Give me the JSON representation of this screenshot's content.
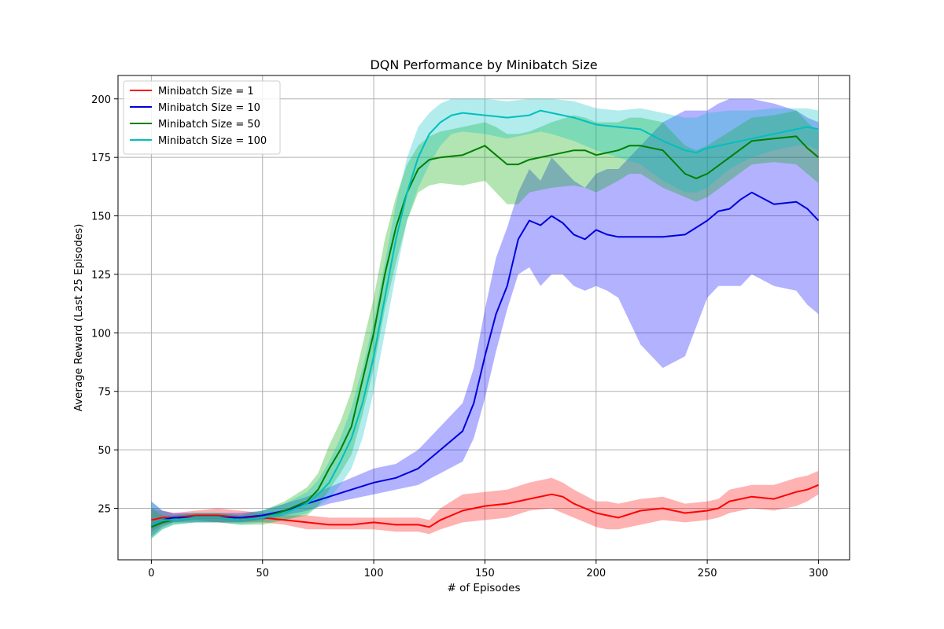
{
  "chart_data": {
    "type": "line",
    "title": "DQN Performance by Minibatch Size",
    "xlabel": "# of Episodes",
    "ylabel": "Average Reward (Last 25 Episodes)",
    "xlim": [
      -15,
      314
    ],
    "ylim": [
      3,
      210
    ],
    "xticks": [
      0,
      50,
      100,
      150,
      200,
      250,
      300
    ],
    "yticks": [
      25,
      50,
      75,
      100,
      125,
      150,
      175,
      200
    ],
    "grid": true,
    "legend_position": "upper-left",
    "band": "shaded region = mean ± spread across runs",
    "series": [
      {
        "name": "Minibatch Size = 1",
        "color": "#ff0000",
        "band_color": "#ff0000",
        "x": [
          0,
          5,
          10,
          20,
          30,
          40,
          50,
          60,
          70,
          80,
          90,
          100,
          110,
          120,
          125,
          130,
          140,
          150,
          160,
          170,
          180,
          185,
          190,
          200,
          205,
          210,
          220,
          230,
          240,
          250,
          255,
          260,
          270,
          280,
          290,
          295,
          300
        ],
        "mean": [
          20,
          21,
          21,
          22,
          22,
          21,
          21,
          20,
          19,
          18,
          18,
          19,
          18,
          18,
          17,
          20,
          24,
          26,
          27,
          29,
          31,
          30,
          27,
          23,
          22,
          21,
          24,
          25,
          23,
          24,
          25,
          28,
          30,
          29,
          32,
          33,
          35
        ],
        "lower": [
          15,
          18,
          19,
          20,
          19,
          19,
          19,
          18,
          16,
          16,
          16,
          16,
          15,
          15,
          14,
          16,
          19,
          20,
          21,
          24,
          25,
          23,
          21,
          17,
          16,
          16,
          18,
          20,
          19,
          20,
          21,
          23,
          25,
          24,
          26,
          28,
          31
        ],
        "upper": [
          25,
          24,
          23,
          24,
          25,
          24,
          23,
          22,
          22,
          21,
          21,
          21,
          21,
          21,
          20,
          25,
          31,
          32,
          33,
          36,
          38,
          36,
          33,
          28,
          28,
          27,
          29,
          30,
          27,
          28,
          29,
          33,
          35,
          35,
          38,
          39,
          41
        ]
      },
      {
        "name": "Minibatch Size = 10",
        "color": "#0000dd",
        "band_color": "#0000ff",
        "x": [
          0,
          5,
          10,
          20,
          30,
          40,
          50,
          60,
          70,
          80,
          90,
          100,
          110,
          120,
          130,
          140,
          145,
          150,
          155,
          160,
          165,
          170,
          175,
          180,
          185,
          190,
          195,
          200,
          205,
          210,
          220,
          230,
          240,
          250,
          255,
          260,
          265,
          270,
          280,
          290,
          295,
          300
        ],
        "mean": [
          18,
          20,
          21,
          21,
          21,
          21,
          22,
          24,
          27,
          30,
          33,
          36,
          38,
          42,
          50,
          58,
          70,
          90,
          108,
          120,
          140,
          148,
          146,
          150,
          147,
          142,
          140,
          144,
          142,
          141,
          141,
          141,
          142,
          148,
          152,
          153,
          157,
          160,
          155,
          156,
          153,
          148
        ],
        "lower": [
          13,
          17,
          19,
          19,
          19,
          19,
          20,
          22,
          24,
          27,
          29,
          31,
          33,
          35,
          40,
          45,
          55,
          72,
          92,
          110,
          125,
          128,
          120,
          125,
          125,
          120,
          118,
          120,
          118,
          115,
          95,
          85,
          90,
          115,
          120,
          120,
          120,
          125,
          120,
          118,
          112,
          108
        ],
        "upper": [
          28,
          24,
          23,
          23,
          23,
          23,
          24,
          27,
          30,
          34,
          38,
          42,
          44,
          50,
          60,
          70,
          85,
          110,
          132,
          145,
          160,
          170,
          165,
          175,
          170,
          165,
          162,
          168,
          170,
          170,
          180,
          190,
          195,
          195,
          198,
          200,
          200,
          200,
          198,
          195,
          192,
          190
        ]
      },
      {
        "name": "Minibatch Size = 50",
        "color": "#008000",
        "band_color": "#00aa00",
        "x": [
          0,
          5,
          10,
          20,
          30,
          40,
          50,
          60,
          70,
          75,
          80,
          85,
          90,
          95,
          100,
          105,
          110,
          115,
          120,
          125,
          130,
          140,
          150,
          155,
          160,
          165,
          170,
          180,
          190,
          195,
          200,
          210,
          215,
          220,
          230,
          240,
          245,
          250,
          260,
          270,
          280,
          290,
          295,
          300
        ],
        "mean": [
          17,
          19,
          20,
          21,
          21,
          20,
          21,
          24,
          28,
          33,
          42,
          50,
          60,
          80,
          100,
          125,
          145,
          160,
          170,
          174,
          175,
          176,
          180,
          176,
          172,
          172,
          174,
          176,
          178,
          178,
          176,
          178,
          180,
          180,
          178,
          168,
          166,
          168,
          175,
          182,
          183,
          184,
          179,
          175
        ],
        "lower": [
          12,
          16,
          18,
          19,
          19,
          18,
          18,
          20,
          22,
          26,
          33,
          40,
          48,
          65,
          85,
          110,
          130,
          148,
          160,
          163,
          164,
          163,
          165,
          160,
          155,
          155,
          160,
          162,
          163,
          162,
          160,
          165,
          168,
          168,
          162,
          158,
          156,
          158,
          165,
          172,
          173,
          172,
          168,
          164
        ],
        "upper": [
          25,
          22,
          22,
          23,
          23,
          22,
          24,
          28,
          34,
          40,
          52,
          62,
          75,
          95,
          115,
          140,
          158,
          172,
          180,
          184,
          186,
          188,
          190,
          188,
          185,
          185,
          186,
          190,
          193,
          192,
          190,
          190,
          192,
          192,
          190,
          180,
          178,
          180,
          186,
          192,
          193,
          195,
          190,
          186
        ]
      },
      {
        "name": "Minibatch Size = 100",
        "color": "#00bfbf",
        "band_color": "#00bfbf",
        "x": [
          0,
          5,
          10,
          20,
          30,
          40,
          50,
          60,
          70,
          75,
          80,
          85,
          90,
          95,
          100,
          105,
          110,
          115,
          120,
          125,
          130,
          135,
          140,
          150,
          160,
          170,
          175,
          180,
          190,
          200,
          210,
          220,
          230,
          240,
          245,
          250,
          260,
          270,
          280,
          290,
          295,
          300
        ],
        "mean": [
          18,
          20,
          20,
          21,
          21,
          20,
          21,
          23,
          27,
          31,
          36,
          45,
          55,
          70,
          90,
          115,
          140,
          160,
          175,
          185,
          190,
          193,
          194,
          193,
          192,
          193,
          195,
          194,
          192,
          189,
          188,
          187,
          182,
          178,
          177,
          179,
          181,
          183,
          185,
          187,
          188,
          187
        ],
        "lower": [
          12,
          16,
          18,
          19,
          19,
          18,
          19,
          20,
          23,
          26,
          29,
          35,
          42,
          55,
          75,
          100,
          125,
          148,
          162,
          172,
          180,
          185,
          186,
          185,
          183,
          185,
          186,
          185,
          182,
          178,
          175,
          172,
          165,
          160,
          160,
          162,
          170,
          175,
          178,
          180,
          180,
          178
        ],
        "upper": [
          28,
          24,
          22,
          23,
          23,
          22,
          24,
          27,
          32,
          37,
          45,
          55,
          68,
          85,
          105,
          130,
          155,
          175,
          188,
          194,
          198,
          200,
          200,
          200,
          199,
          200,
          200,
          200,
          199,
          196,
          195,
          196,
          194,
          192,
          192,
          194,
          195,
          195,
          196,
          196,
          196,
          195
        ]
      }
    ]
  }
}
